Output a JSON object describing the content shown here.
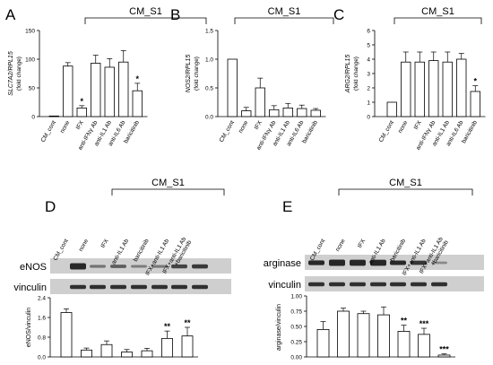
{
  "chart_data": [
    {
      "panel": "A",
      "type": "bar",
      "group_label": "CM_S1",
      "ylabel": "SLC7A2/RPL15",
      "ylabel_sub": "(fold change)",
      "ylim": [
        0,
        150
      ],
      "yticks": [
        0,
        50,
        100,
        150
      ],
      "categories": [
        "CM_cont",
        "none",
        "IFX",
        "anti-IFNγ Ab",
        "anti-IL1 Ab",
        "anti-IL6 Ab",
        "baricitinib"
      ],
      "values": [
        1,
        88,
        15,
        93,
        86,
        95,
        45
      ],
      "errors": [
        0,
        6,
        4,
        14,
        15,
        20,
        13
      ],
      "significance": [
        "",
        "",
        "*",
        "",
        "",
        "",
        "*"
      ]
    },
    {
      "panel": "B",
      "type": "bar",
      "group_label": "CM_S1",
      "ylabel": "NOS2/RPL15",
      "ylabel_sub": "(fold change)",
      "ylim": [
        0,
        1.5
      ],
      "yticks": [
        0,
        0.5,
        1.0,
        1.5
      ],
      "ytick_labels": [
        "0.0",
        "0.5",
        "1.0",
        "1.5"
      ],
      "categories": [
        "CM_cont",
        "none",
        "IFX",
        "anti-IFNγ Ab",
        "anti-IL1 Ab",
        "anti-IL6 Ab",
        "baricitinib"
      ],
      "values": [
        1.0,
        0.1,
        0.5,
        0.12,
        0.15,
        0.14,
        0.11
      ],
      "errors": [
        0,
        0.06,
        0.17,
        0.07,
        0.08,
        0.06,
        0.03
      ],
      "significance": [
        "",
        "",
        "",
        "",
        "",
        "",
        ""
      ]
    },
    {
      "panel": "C",
      "type": "bar",
      "group_label": "CM_S1",
      "ylabel": "ARG2/RPL15",
      "ylabel_sub": "(fold change)",
      "ylim": [
        0,
        6
      ],
      "yticks": [
        0,
        1,
        2,
        3,
        4,
        5,
        6
      ],
      "categories": [
        "CM_cont",
        "none",
        "IFX",
        "anti-IFNγ Ab",
        "anti-IL1 Ab",
        "anti-IL6 Ab",
        "baricitinib"
      ],
      "values": [
        1.0,
        3.8,
        3.8,
        3.9,
        3.8,
        4.0,
        1.75
      ],
      "errors": [
        0,
        0.7,
        0.7,
        0.6,
        0.7,
        0.4,
        0.4
      ],
      "significance": [
        "",
        "",
        "",
        "",
        "",
        "",
        "*"
      ]
    },
    {
      "panel": "D",
      "type": "bar",
      "group_label": "CM_S1",
      "blot_labels": [
        "eNOS",
        "vinculin"
      ],
      "ylabel": "eNOS/vinculin",
      "ylim": [
        0,
        2.4
      ],
      "yticks": [
        0,
        0.8,
        1.6,
        2.4
      ],
      "ytick_labels": [
        "0.0",
        "0.8",
        "1.6",
        "2.4"
      ],
      "categories": [
        "CM_cont",
        "none",
        "IFX",
        "anti-IL1 Ab",
        "baricitinib",
        "IFX+anti-IL1 Ab",
        "IFX+anti-IL1 Ab +baricitinib"
      ],
      "values": [
        1.8,
        0.28,
        0.5,
        0.2,
        0.25,
        0.75,
        0.85
      ],
      "errors": [
        0.15,
        0.08,
        0.15,
        0.1,
        0.1,
        0.3,
        0.35
      ],
      "significance": [
        "",
        "",
        "",
        "",
        "",
        "**",
        "**"
      ]
    },
    {
      "panel": "E",
      "type": "bar",
      "group_label": "CM_S1",
      "blot_labels": [
        "arginase",
        "vinculin"
      ],
      "ylabel": "arginase/vinculin",
      "ylim": [
        0,
        1.0
      ],
      "yticks": [
        0,
        0.25,
        0.5,
        0.75,
        1.0
      ],
      "ytick_labels": [
        "0.00",
        "0.25",
        "0.50",
        "0.75",
        "1.00"
      ],
      "categories": [
        "CM_cont",
        "none",
        "IFX",
        "anti-IL1 Ab",
        "baricitinib",
        "IFX+anti-IL1 Ab",
        "IFX+anti-IL1 Ab +baricitinib"
      ],
      "values": [
        0.45,
        0.75,
        0.71,
        0.69,
        0.42,
        0.37,
        0.03
      ],
      "errors": [
        0.13,
        0.05,
        0.04,
        0.13,
        0.1,
        0.1,
        0.02
      ],
      "significance": [
        "",
        "",
        "",
        "",
        "**",
        "***",
        "***"
      ]
    }
  ],
  "colors": {
    "bar_fill": "#ffffff",
    "stroke": "#000000",
    "blot_band": "#1e1e1e",
    "blot_bg": "#bdbdbd"
  }
}
